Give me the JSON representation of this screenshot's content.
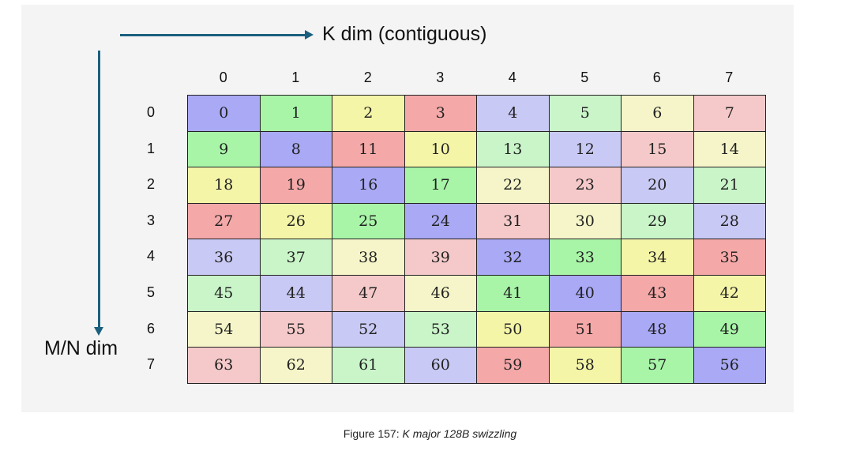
{
  "axes": {
    "k_label": "K dim (contiguous)",
    "mn_label": "M/N dim"
  },
  "column_headers": [
    "0",
    "1",
    "2",
    "3",
    "4",
    "5",
    "6",
    "7"
  ],
  "row_headers": [
    "0",
    "1",
    "2",
    "3",
    "4",
    "5",
    "6",
    "7"
  ],
  "cells": [
    [
      0,
      1,
      2,
      3,
      4,
      5,
      6,
      7
    ],
    [
      9,
      8,
      11,
      10,
      13,
      12,
      15,
      14
    ],
    [
      18,
      19,
      16,
      17,
      22,
      23,
      20,
      21
    ],
    [
      27,
      26,
      25,
      24,
      31,
      30,
      29,
      28
    ],
    [
      36,
      37,
      38,
      39,
      32,
      33,
      34,
      35
    ],
    [
      45,
      44,
      47,
      46,
      41,
      40,
      43,
      42
    ],
    [
      54,
      55,
      52,
      53,
      50,
      51,
      48,
      49
    ],
    [
      63,
      62,
      61,
      60,
      59,
      58,
      57,
      56
    ]
  ],
  "colors_by_value_mod8": [
    "#a9a9f5",
    "#a8f5a8",
    "#f5f5a8",
    "#f5a8a8",
    "#c9c9f5",
    "#c9f5c9",
    "#f5f5c9",
    "#f5c9c9"
  ],
  "arrow_color": "#1b5f7f",
  "caption": {
    "prefix": "Figure 157: ",
    "title": "K major 128B swizzling"
  }
}
